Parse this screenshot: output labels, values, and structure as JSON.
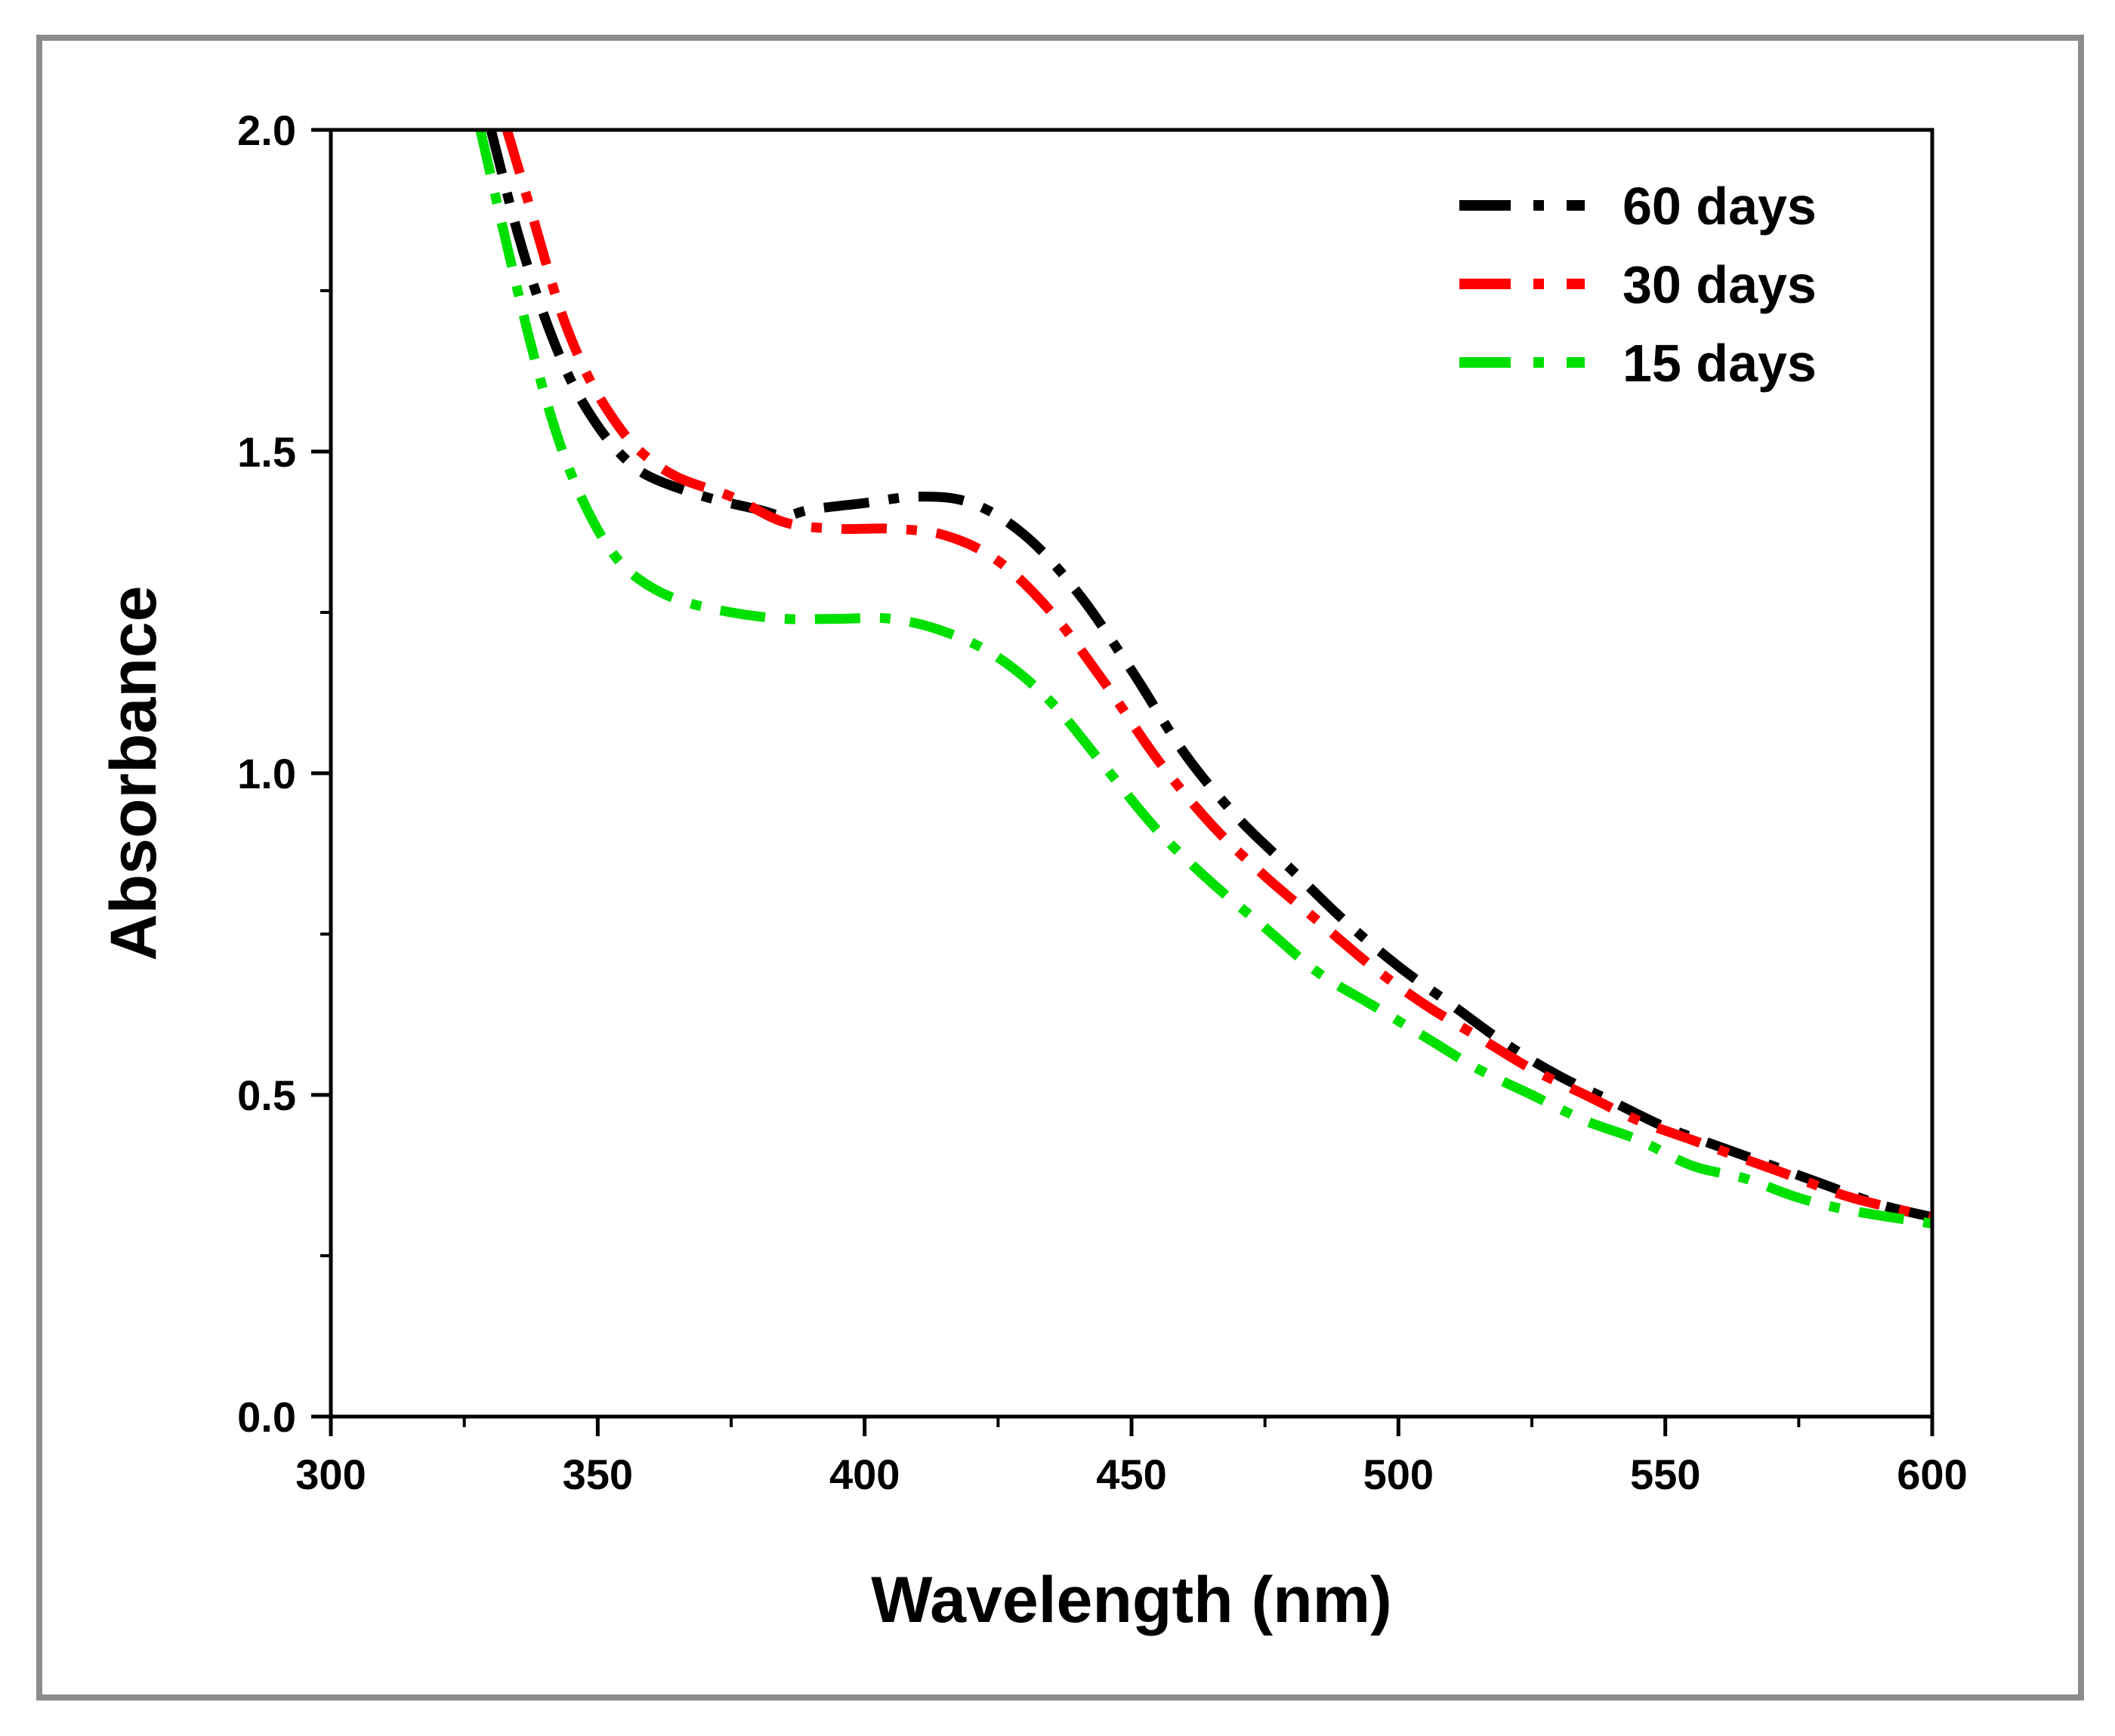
{
  "chart_data": {
    "type": "line",
    "title": "",
    "xlabel": "Wavelength (nm)",
    "ylabel": "Absorbance",
    "xlim": [
      300,
      600
    ],
    "ylim": [
      0.0,
      2.0
    ],
    "x_major_ticks": [
      300,
      350,
      400,
      450,
      500,
      550,
      600
    ],
    "x_tick_labels": [
      "300",
      "350",
      "400",
      "450",
      "500",
      "550",
      "600"
    ],
    "y_major_ticks": [
      0.0,
      0.5,
      1.0,
      1.5,
      2.0
    ],
    "y_tick_labels": [
      "0.0",
      "0.5",
      "1.0",
      "1.5",
      "2.0"
    ],
    "legend_position": "top-right",
    "grid": false,
    "series": [
      {
        "name": "60 days",
        "color": "#000000",
        "x": [
          330,
          335,
          340,
          345,
          350,
          355,
          360,
          370,
          380,
          385,
          390,
          400,
          410,
          420,
          430,
          440,
          450,
          460,
          470,
          480,
          490,
          500,
          510,
          520,
          530,
          540,
          550,
          560,
          570,
          580,
          590,
          600
        ],
        "y": [
          2.0,
          1.84,
          1.71,
          1.61,
          1.54,
          1.49,
          1.46,
          1.43,
          1.41,
          1.4,
          1.41,
          1.42,
          1.43,
          1.42,
          1.37,
          1.28,
          1.16,
          1.03,
          0.93,
          0.85,
          0.77,
          0.7,
          0.64,
          0.58,
          0.53,
          0.49,
          0.45,
          0.42,
          0.39,
          0.36,
          0.33,
          0.31
        ]
      },
      {
        "name": "30 days",
        "color": "#ff0000",
        "x": [
          333,
          338,
          343,
          348,
          353,
          358,
          365,
          375,
          385,
          395,
          405,
          415,
          425,
          435,
          445,
          455,
          465,
          475,
          485,
          495,
          505,
          515,
          525,
          535,
          545,
          555,
          565,
          575,
          585,
          600
        ],
        "y": [
          2.0,
          1.86,
          1.72,
          1.62,
          1.55,
          1.5,
          1.46,
          1.43,
          1.39,
          1.38,
          1.38,
          1.37,
          1.33,
          1.25,
          1.14,
          1.02,
          0.92,
          0.84,
          0.77,
          0.7,
          0.64,
          0.59,
          0.54,
          0.5,
          0.46,
          0.43,
          0.4,
          0.37,
          0.34,
          0.31
        ]
      },
      {
        "name": "15 days",
        "color": "#00e000",
        "x": [
          328,
          333,
          338,
          343,
          348,
          353,
          358,
          365,
          375,
          385,
          395,
          405,
          415,
          425,
          435,
          445,
          455,
          465,
          475,
          485,
          495,
          505,
          515,
          525,
          535,
          545,
          555,
          565,
          575,
          585,
          600
        ],
        "y": [
          2.0,
          1.82,
          1.65,
          1.51,
          1.41,
          1.34,
          1.3,
          1.27,
          1.25,
          1.24,
          1.24,
          1.24,
          1.22,
          1.18,
          1.11,
          1.01,
          0.91,
          0.83,
          0.76,
          0.69,
          0.64,
          0.59,
          0.54,
          0.5,
          0.46,
          0.43,
          0.39,
          0.37,
          0.34,
          0.32,
          0.3
        ]
      }
    ]
  }
}
